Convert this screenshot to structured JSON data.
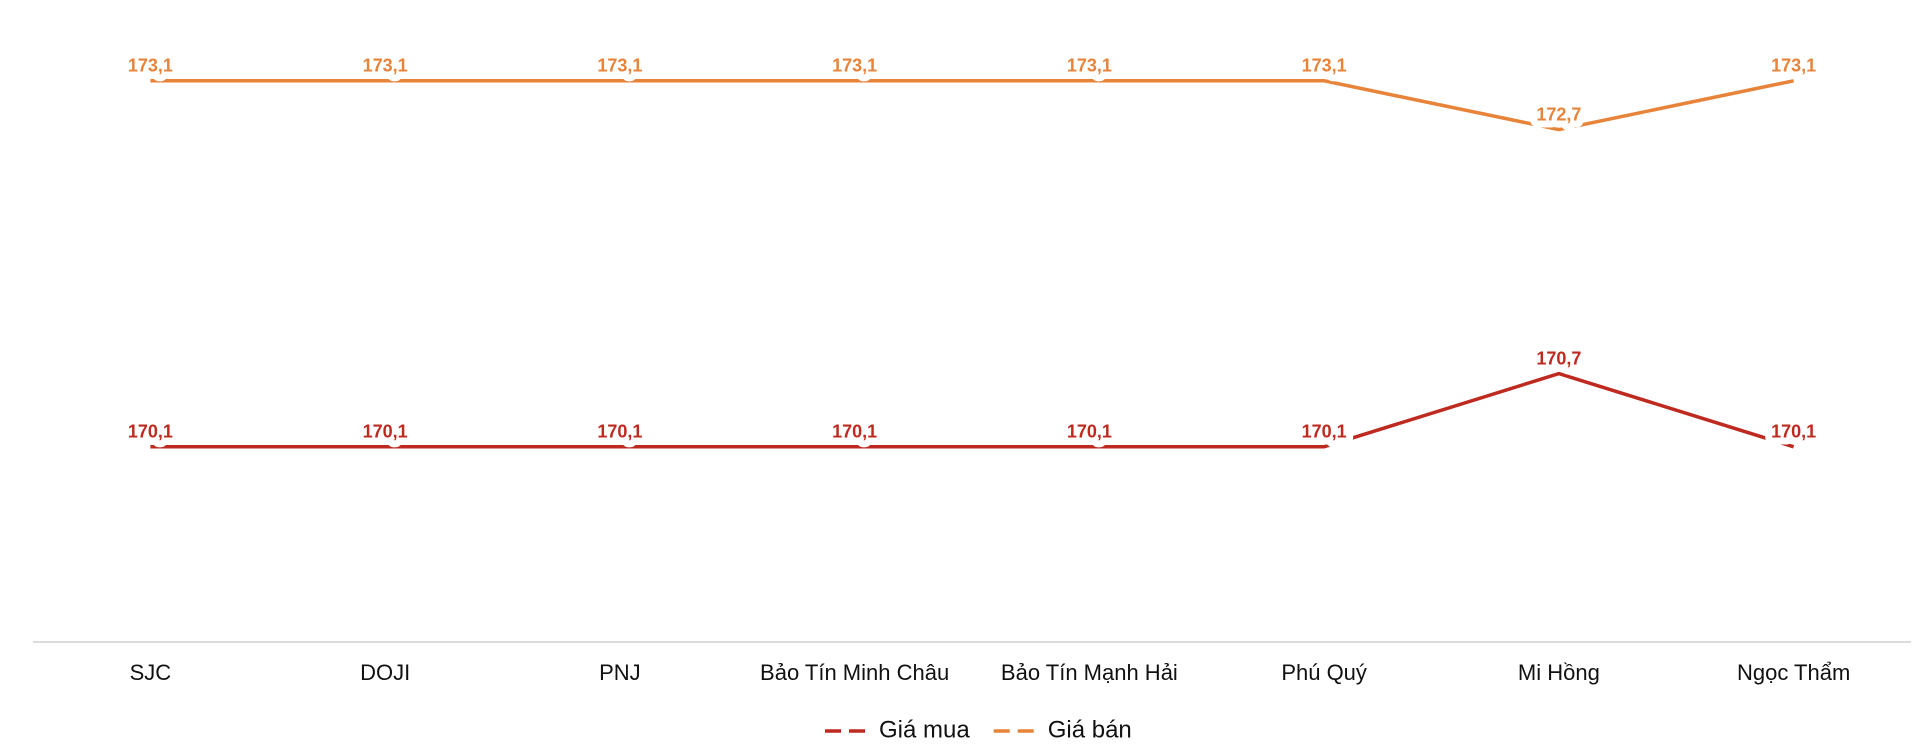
{
  "chart_data": {
    "type": "line",
    "categories": [
      "SJC",
      "DOJI",
      "PNJ",
      "Bảo Tín Minh Châu",
      "Bảo Tín Mạnh Hải",
      "Phú Quý",
      "Mi Hồng",
      "Ngọc Thẩm"
    ],
    "series": [
      {
        "name": "Giá mua",
        "color": "#be2a1f",
        "values": [
          170.1,
          170.1,
          170.1,
          170.1,
          170.1,
          170.1,
          170.7,
          170.1
        ],
        "value_labels": [
          "170,1",
          "170,1",
          "170,1",
          "170,1",
          "170,1",
          "170,1",
          "170,7",
          "170,1"
        ]
      },
      {
        "name": "Giá bán",
        "color": "#e8833a",
        "values": [
          173.1,
          173.1,
          173.1,
          173.1,
          173.1,
          173.1,
          172.7,
          173.1
        ],
        "value_labels": [
          "173,1",
          "173,1",
          "173,1",
          "173,1",
          "173,1",
          "173,1",
          "172,7",
          "173,1"
        ]
      }
    ],
    "ylim": [
      168.5,
      173.5
    ]
  }
}
